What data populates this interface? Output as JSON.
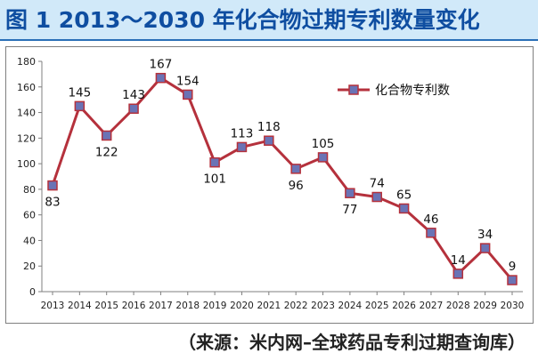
{
  "title": "图 1    2013～2030 年化合物过期专利数量变化",
  "source": "（来源：米内网–全球药品专利过期查询库）",
  "colors": {
    "line": "#b5313c",
    "marker_fill": "#6a73b5",
    "marker_border": "#b5313c",
    "title_bg": "#d1e9f9",
    "title_text": "#0f4ea1"
  },
  "chart_data": {
    "type": "line",
    "categories": [
      "2013",
      "2014",
      "2015",
      "2016",
      "2017",
      "2018",
      "2019",
      "2020",
      "2021",
      "2022",
      "2023",
      "2024",
      "2025",
      "2026",
      "2027",
      "2028",
      "2029",
      "2030"
    ],
    "series": [
      {
        "name": "化合物专利数",
        "values": [
          83,
          145,
          122,
          143,
          167,
          154,
          101,
          113,
          118,
          96,
          105,
          77,
          74,
          65,
          46,
          14,
          34,
          9
        ]
      }
    ],
    "ylim": [
      0,
      180
    ],
    "yticks": [
      0,
      20,
      40,
      60,
      80,
      100,
      120,
      140,
      160,
      180
    ],
    "grid": false,
    "legend_position": "top-right",
    "data_labels": true
  }
}
